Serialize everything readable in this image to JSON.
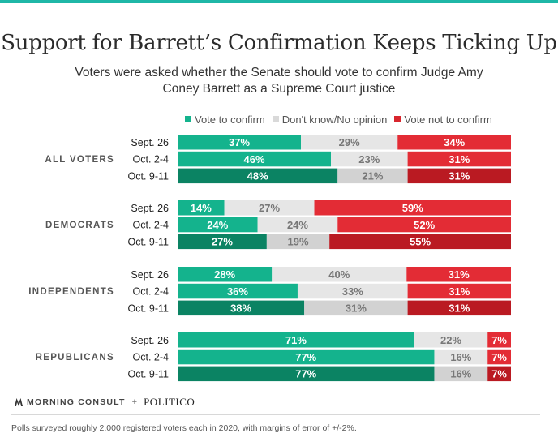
{
  "title": "Support for Barrett’s Confirmation Keeps Ticking Up",
  "subtitle": "Voters were asked whether the Senate should vote to confirm Judge Amy Coney Barrett as a Supreme Court justice",
  "legend": [
    {
      "label": "Vote to confirm",
      "color": "#14b38d"
    },
    {
      "label": "Don't know/No opinion",
      "color": "#d9d9d9"
    },
    {
      "label": "Vote not to confirm",
      "color": "#d8262e"
    }
  ],
  "chart_data": {
    "type": "bar",
    "orientation": "horizontal-stacked-100",
    "series_names": [
      "Vote to confirm",
      "Don't know/No opinion",
      "Vote not to confirm"
    ],
    "groups": [
      {
        "name": "ALL VOTERS",
        "rows": [
          {
            "label": "Sept. 26",
            "values": [
              37,
              29,
              34
            ]
          },
          {
            "label": "Oct. 2-4",
            "values": [
              46,
              23,
              31
            ]
          },
          {
            "label": "Oct. 9-11",
            "values": [
              48,
              21,
              31
            ]
          }
        ]
      },
      {
        "name": "DEMOCRATS",
        "rows": [
          {
            "label": "Sept. 26",
            "values": [
              14,
              27,
              59
            ]
          },
          {
            "label": "Oct. 2-4",
            "values": [
              24,
              24,
              52
            ]
          },
          {
            "label": "Oct. 9-11",
            "values": [
              27,
              19,
              55
            ]
          }
        ]
      },
      {
        "name": "INDEPENDENTS",
        "rows": [
          {
            "label": "Sept. 26",
            "values": [
              28,
              40,
              31
            ]
          },
          {
            "label": "Oct. 2-4",
            "values": [
              36,
              33,
              31
            ]
          },
          {
            "label": "Oct. 9-11",
            "values": [
              38,
              31,
              31
            ]
          }
        ]
      },
      {
        "name": "REPUBLICANS",
        "rows": [
          {
            "label": "Sept. 26",
            "values": [
              71,
              22,
              7
            ]
          },
          {
            "label": "Oct. 2-4",
            "values": [
              77,
              16,
              7
            ]
          },
          {
            "label": "Oct. 9-11",
            "values": [
              77,
              16,
              7
            ]
          }
        ]
      }
    ],
    "colors": {
      "confirm_light": "#14b38d",
      "confirm_dark": "#0b8363",
      "unsure_light": "#e6e6e6",
      "unsure_dark": "#d2d2d2",
      "reject_light": "#e32c35",
      "reject_dark": "#ba1a22"
    }
  },
  "footer": {
    "brand_left": "MORNING CONSULT",
    "brand_separator": "+",
    "brand_right": "POLITICO",
    "note": "Polls surveyed roughly 2,000 registered voters each in 2020, with margins of error of +/-2%."
  }
}
